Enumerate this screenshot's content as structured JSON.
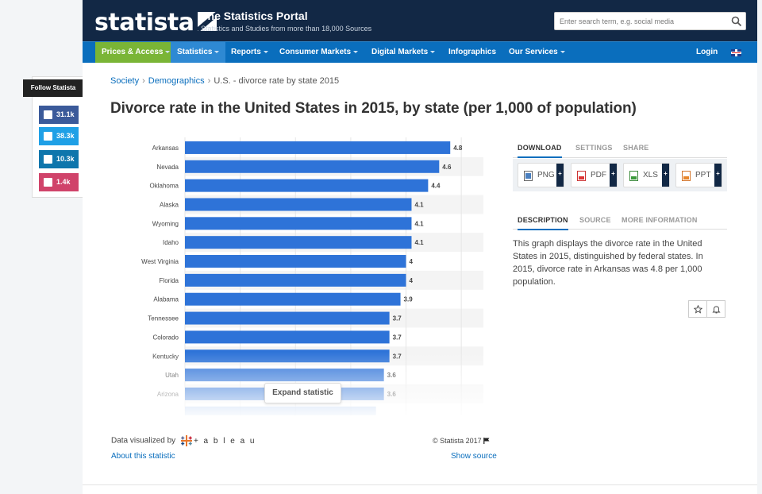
{
  "header": {
    "logo": "statista",
    "portal_title": "The Statistics Portal",
    "portal_subtitle": "Statistics and Studies from more than 18,000 Sources",
    "search_placeholder": "Enter search term, e.g. social media",
    "search_icon": "search-icon"
  },
  "nav": {
    "items": [
      {
        "label": "Prices & Access",
        "dropdown": true
      },
      {
        "label": "Statistics",
        "dropdown": true
      },
      {
        "label": "Reports",
        "dropdown": true
      },
      {
        "label": "Consumer Markets",
        "dropdown": true
      },
      {
        "label": "Digital Markets",
        "dropdown": true
      },
      {
        "label": "Infographics",
        "dropdown": false
      },
      {
        "label": "Our Services",
        "dropdown": true
      }
    ],
    "login": "Login",
    "colors": {
      "nav": "#0a6ebd",
      "prices": "#7ab536",
      "header": "#122845"
    }
  },
  "follow": {
    "label": "Follow Statista",
    "facebook": "31.1k",
    "twitter": "38.3k",
    "linkedin": "10.3k",
    "instagram": "1.4k",
    "colors": {
      "facebook": "#3b5a9a",
      "twitter": "#1fa0e6",
      "linkedin": "#0f76ac",
      "instagram": "#d0436a"
    }
  },
  "breadcrumb": {
    "items": [
      "Society",
      "Demographics"
    ],
    "current": "U.S. - divorce rate by state 2015"
  },
  "page_title": "Divorce rate in the United States in 2015, by state (per 1,000 of population)",
  "chart_data": {
    "type": "bar",
    "orientation": "horizontal",
    "categories": [
      "Arkansas",
      "Nevada",
      "Oklahoma",
      "Alaska",
      "Wyoming",
      "Idaho",
      "West Virginia",
      "Florida",
      "Alabama",
      "Tennessee",
      "Colorado",
      "Kentucky",
      "Utah",
      "Arizona"
    ],
    "values": [
      4.8,
      4.6,
      4.4,
      4.1,
      4.1,
      4.1,
      4,
      4,
      3.9,
      3.7,
      3.7,
      3.7,
      3.6,
      3.6
    ],
    "data_labels": [
      "4.8",
      "4.6",
      "4.4",
      "4.1",
      "4.1",
      "4.1",
      "4",
      "4",
      "3.9",
      "3.7",
      "3.7",
      "3.7",
      "3.6",
      "3.6"
    ],
    "title": "",
    "xlabel": "",
    "ylabel": "",
    "xlim": [
      0,
      5.4
    ],
    "grid": true,
    "bar_color": "#2e73d8",
    "truncated": true
  },
  "chart_footer": {
    "expand": "Expand statistic",
    "data_visualized_by": "Data visualized by",
    "tableau": "+ a b l e a u",
    "about": "About this statistic",
    "copyright": "© Statista 2017",
    "show_source": "Show source"
  },
  "right": {
    "tabs1": [
      "DOWNLOAD",
      "SETTINGS",
      "SHARE"
    ],
    "downloads": [
      "PNG",
      "PDF",
      "XLS",
      "PPT"
    ],
    "tabs2": [
      "DESCRIPTION",
      "SOURCE",
      "MORE INFORMATION"
    ],
    "description": "This graph displays the divorce rate in the United States in 2015, distinguished by federal states. In 2015, divorce rate in Arkansas was 4.8 per 1,000 population.",
    "star_icon": "star-icon",
    "bell_icon": "bell-icon"
  }
}
